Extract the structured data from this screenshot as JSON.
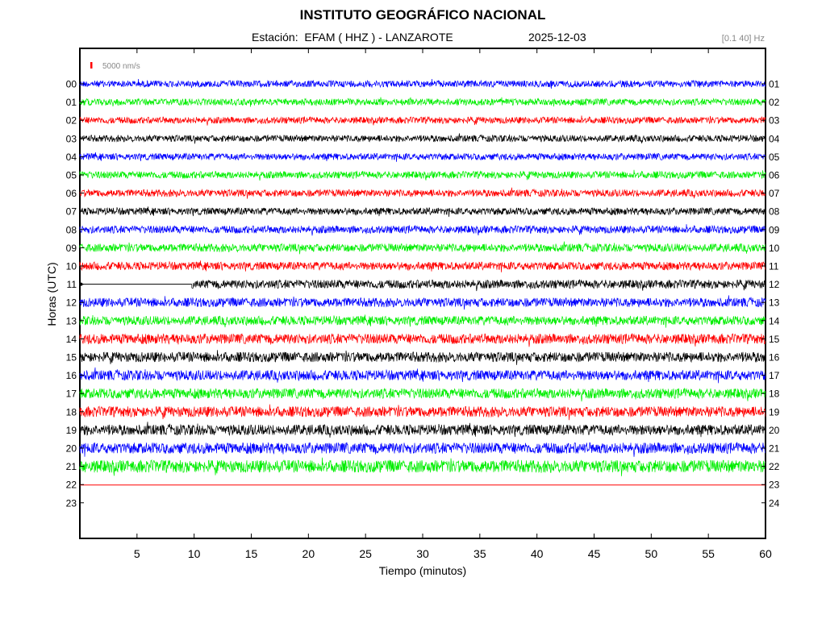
{
  "header": {
    "title": "INSTITUTO GEOGRÁFICO NACIONAL",
    "station_label": "Estación:  EFAM ( HHZ ) - LANZAROTE",
    "date": "2025-12-03",
    "filter": "[0.1 40] Hz"
  },
  "chart_data": {
    "type": "line",
    "subtype": "helicorder",
    "xlabel": "Tiempo (minutos)",
    "ylabel": "Horas (UTC)",
    "xlim": [
      0,
      60
    ],
    "x_ticks": [
      5,
      10,
      15,
      20,
      25,
      30,
      35,
      40,
      45,
      50,
      55,
      60
    ],
    "left_hour_labels": [
      "00",
      "01",
      "02",
      "03",
      "04",
      "05",
      "06",
      "07",
      "08",
      "09",
      "10",
      "11",
      "12",
      "13",
      "14",
      "15",
      "16",
      "17",
      "18",
      "19",
      "20",
      "21",
      "22",
      "23"
    ],
    "right_hour_labels": [
      "01",
      "02",
      "03",
      "04",
      "05",
      "06",
      "07",
      "08",
      "09",
      "10",
      "11",
      "12",
      "13",
      "14",
      "15",
      "16",
      "17",
      "18",
      "19",
      "20",
      "21",
      "22",
      "23",
      "24"
    ],
    "scale_label": "5000 nm/s",
    "scale_color": "#ff0000",
    "color_cycle": [
      "#0000ff",
      "#00ee00",
      "#ff0000",
      "#000000"
    ],
    "traces": [
      {
        "hour": "00",
        "color": "#0000ff",
        "relative_amplitude": 0.35,
        "start_min": 0,
        "end_min": 60
      },
      {
        "hour": "01",
        "color": "#00ee00",
        "relative_amplitude": 0.35,
        "start_min": 0,
        "end_min": 60
      },
      {
        "hour": "02",
        "color": "#ff0000",
        "relative_amplitude": 0.35,
        "start_min": 0,
        "end_min": 60
      },
      {
        "hour": "03",
        "color": "#000000",
        "relative_amplitude": 0.35,
        "start_min": 0,
        "end_min": 60
      },
      {
        "hour": "04",
        "color": "#0000ff",
        "relative_amplitude": 0.35,
        "start_min": 0,
        "end_min": 60
      },
      {
        "hour": "05",
        "color": "#00ee00",
        "relative_amplitude": 0.4,
        "start_min": 0,
        "end_min": 60
      },
      {
        "hour": "06",
        "color": "#ff0000",
        "relative_amplitude": 0.4,
        "start_min": 0,
        "end_min": 60
      },
      {
        "hour": "07",
        "color": "#000000",
        "relative_amplitude": 0.4,
        "start_min": 0,
        "end_min": 60
      },
      {
        "hour": "08",
        "color": "#0000ff",
        "relative_amplitude": 0.45,
        "start_min": 0,
        "end_min": 60
      },
      {
        "hour": "09",
        "color": "#00ee00",
        "relative_amplitude": 0.5,
        "start_min": 0,
        "end_min": 60
      },
      {
        "hour": "10",
        "color": "#ff0000",
        "relative_amplitude": 0.5,
        "start_min": 0,
        "end_min": 60
      },
      {
        "hour": "11",
        "color": "#000000",
        "relative_amplitude": 0.55,
        "start_min": 9.8,
        "end_min": 60,
        "gap_flat_from_min": 0
      },
      {
        "hour": "12",
        "color": "#0000ff",
        "relative_amplitude": 0.6,
        "start_min": 0,
        "end_min": 60
      },
      {
        "hour": "13",
        "color": "#00ee00",
        "relative_amplitude": 0.6,
        "start_min": 0,
        "end_min": 60
      },
      {
        "hour": "14",
        "color": "#ff0000",
        "relative_amplitude": 0.7,
        "start_min": 0,
        "end_min": 60
      },
      {
        "hour": "15",
        "color": "#000000",
        "relative_amplitude": 0.7,
        "start_min": 0,
        "end_min": 60
      },
      {
        "hour": "16",
        "color": "#0000ff",
        "relative_amplitude": 0.7,
        "start_min": 0,
        "end_min": 60
      },
      {
        "hour": "17",
        "color": "#00ee00",
        "relative_amplitude": 0.7,
        "start_min": 0,
        "end_min": 60
      },
      {
        "hour": "18",
        "color": "#ff0000",
        "relative_amplitude": 0.75,
        "start_min": 0,
        "end_min": 60
      },
      {
        "hour": "19",
        "color": "#000000",
        "relative_amplitude": 0.75,
        "start_min": 0,
        "end_min": 60
      },
      {
        "hour": "20",
        "color": "#0000ff",
        "relative_amplitude": 0.8,
        "start_min": 0,
        "end_min": 60
      },
      {
        "hour": "21",
        "color": "#00ee00",
        "relative_amplitude": 0.95,
        "start_min": 0,
        "end_min": 60
      },
      {
        "hour": "22",
        "color": "#ff0000",
        "relative_amplitude": 0.0,
        "start_min": 0,
        "end_min": 60,
        "flat": true
      }
    ]
  }
}
